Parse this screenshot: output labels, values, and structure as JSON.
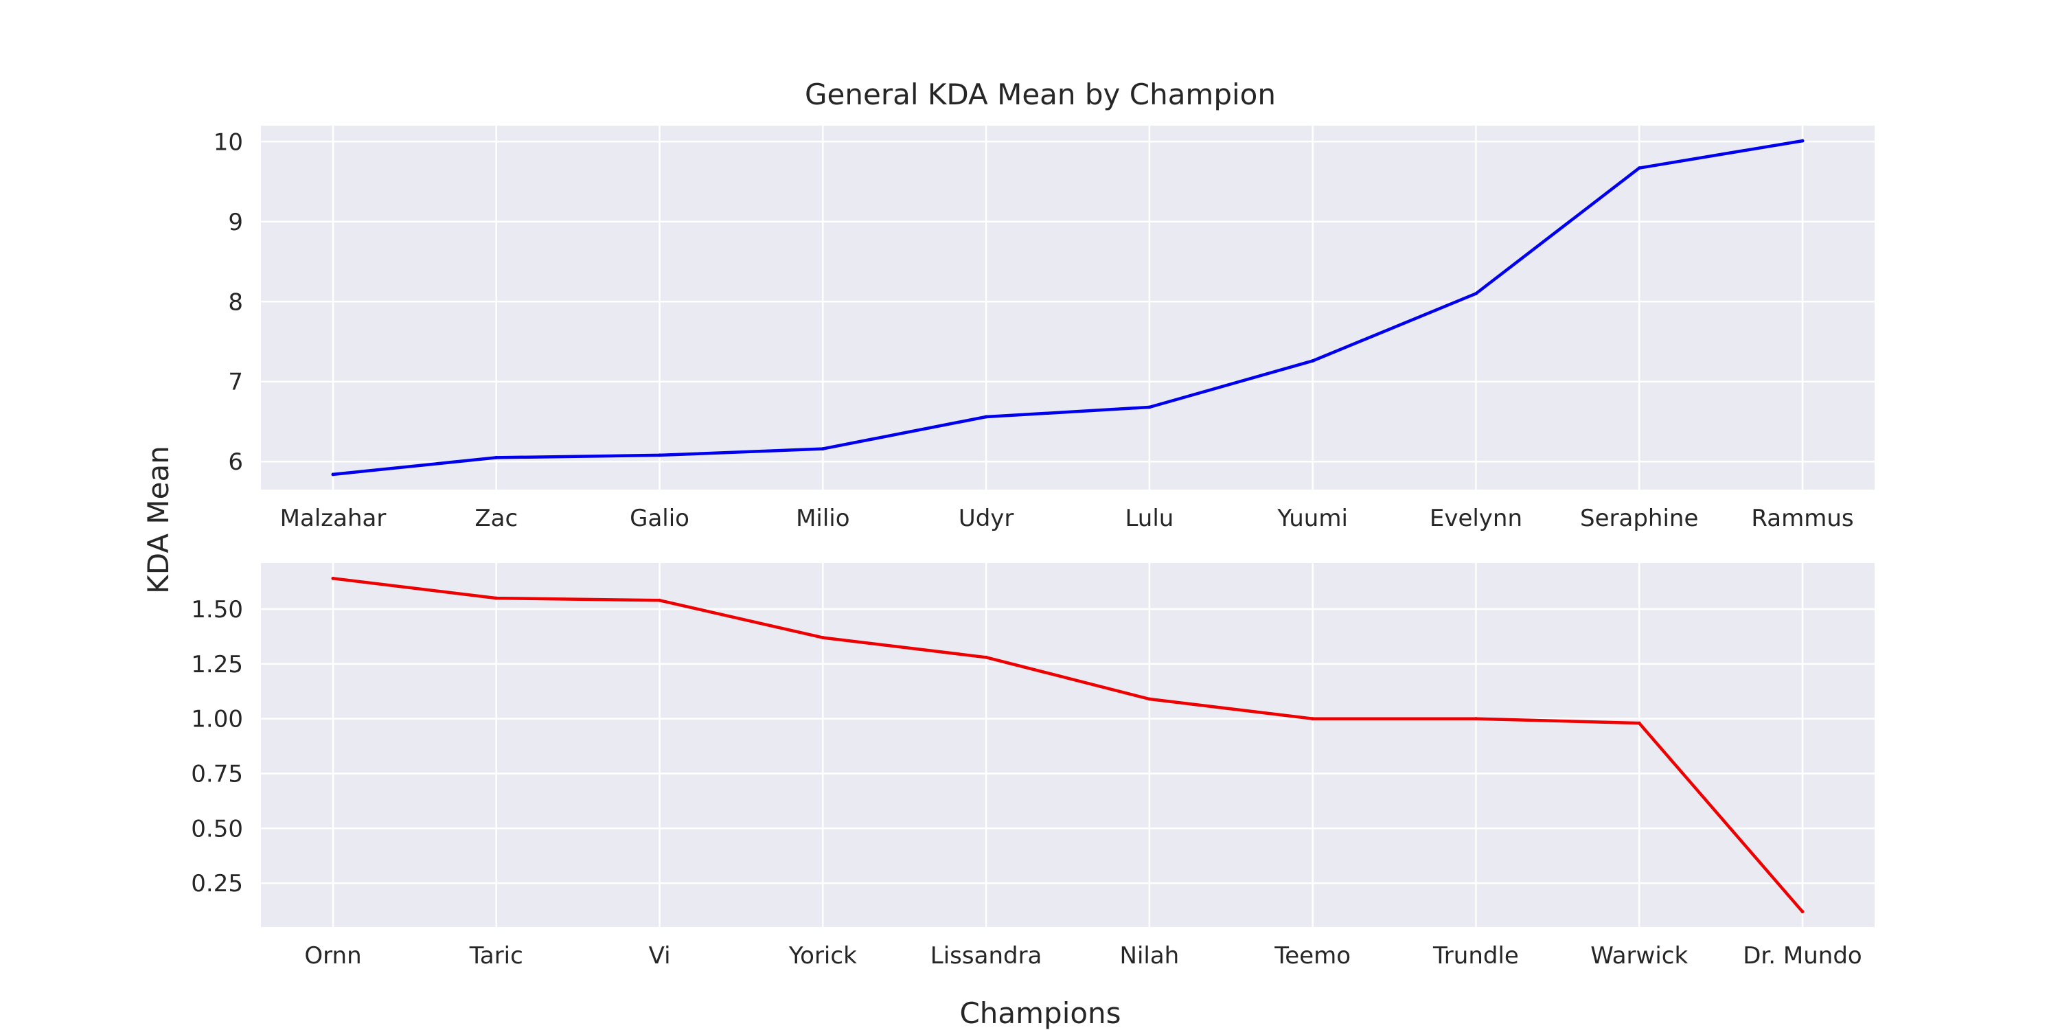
{
  "chart_data": {
    "type": "line",
    "title": "General KDA Mean by Champion",
    "xlabel": "Champions",
    "ylabel": "KDA Mean",
    "grid": true,
    "legend": "none",
    "panels": [
      {
        "name": "",
        "color": "#0000ee",
        "categories": [
          "Malzahar",
          "Zac",
          "Galio",
          "Milio",
          "Udyr",
          "Lulu",
          "Yuumi",
          "Evelynn",
          "Seraphine",
          "Rammus"
        ],
        "values": [
          5.84,
          6.05,
          6.08,
          6.16,
          6.56,
          6.68,
          7.26,
          8.1,
          9.67,
          10.01
        ],
        "ylim": [
          5.65,
          10.2
        ],
        "yticks": [
          6,
          7,
          8,
          9,
          10
        ],
        "ytick_labels": [
          "6",
          "7",
          "8",
          "9",
          "10"
        ]
      },
      {
        "name": "",
        "color": "#ee0000",
        "categories": [
          "Ornn",
          "Taric",
          "Vi",
          "Yorick",
          "Lissandra",
          "Nilah",
          "Teemo",
          "Trundle",
          "Warwick",
          "Dr. Mundo"
        ],
        "values": [
          1.64,
          1.55,
          1.54,
          1.37,
          1.28,
          1.09,
          1.0,
          1.0,
          0.98,
          0.12
        ],
        "ylim": [
          0.05,
          1.71
        ],
        "yticks": [
          0.25,
          0.5,
          0.75,
          1.0,
          1.25,
          1.5
        ],
        "ytick_labels": [
          "0.25",
          "0.50",
          "0.75",
          "1.00",
          "1.25",
          "1.50"
        ]
      }
    ]
  }
}
